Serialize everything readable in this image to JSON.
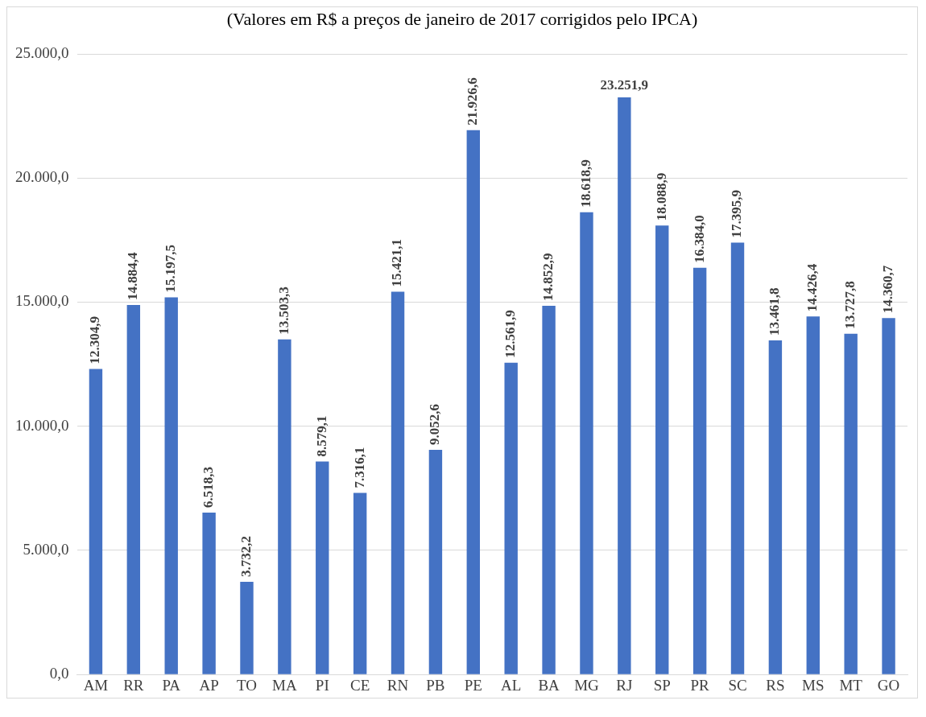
{
  "chart_data": {
    "type": "bar",
    "subtitle": "(Valores em R$ a preços de janeiro de 2017 corrigidos pelo IPCA)",
    "categories": [
      "AM",
      "RR",
      "PA",
      "AP",
      "TO",
      "MA",
      "PI",
      "CE",
      "RN",
      "PB",
      "PE",
      "AL",
      "BA",
      "MG",
      "RJ",
      "SP",
      "PR",
      "SC",
      "RS",
      "MS",
      "MT",
      "GO"
    ],
    "values": [
      12304.9,
      14884.4,
      15197.5,
      6518.3,
      3732.2,
      13503.3,
      8579.1,
      7316.1,
      15421.1,
      9052.6,
      21926.6,
      12561.9,
      14852.9,
      18618.9,
      23251.9,
      18088.9,
      16384.0,
      17395.9,
      13461.8,
      14426.4,
      13727.8,
      14360.7
    ],
    "value_labels": [
      "12.304,9",
      "14.884,4",
      "15.197,5",
      "6.518,3",
      "3.732,2",
      "13.503,3",
      "8.579,1",
      "7.316,1",
      "15.421,1",
      "9.052,6",
      "21.926,6",
      "12.561,9",
      "14.852,9",
      "18.618,9",
      "23.251,9",
      "18.088,9",
      "16.384,0",
      "17.395,9",
      "13.461,8",
      "14.426,4",
      "13.727,8",
      "14.360,7"
    ],
    "color": "#4472c4",
    "ylim": [
      0,
      25000
    ],
    "yticks": [
      {
        "value": 0,
        "label": "0,0"
      },
      {
        "value": 5000,
        "label": "5.000,0"
      },
      {
        "value": 10000,
        "label": "10.000,0"
      },
      {
        "value": 15000,
        "label": "15.000,0"
      },
      {
        "value": 20000,
        "label": "20.000,0"
      },
      {
        "value": 25000,
        "label": "25.000,0"
      }
    ],
    "grid": "y",
    "legend": false
  }
}
